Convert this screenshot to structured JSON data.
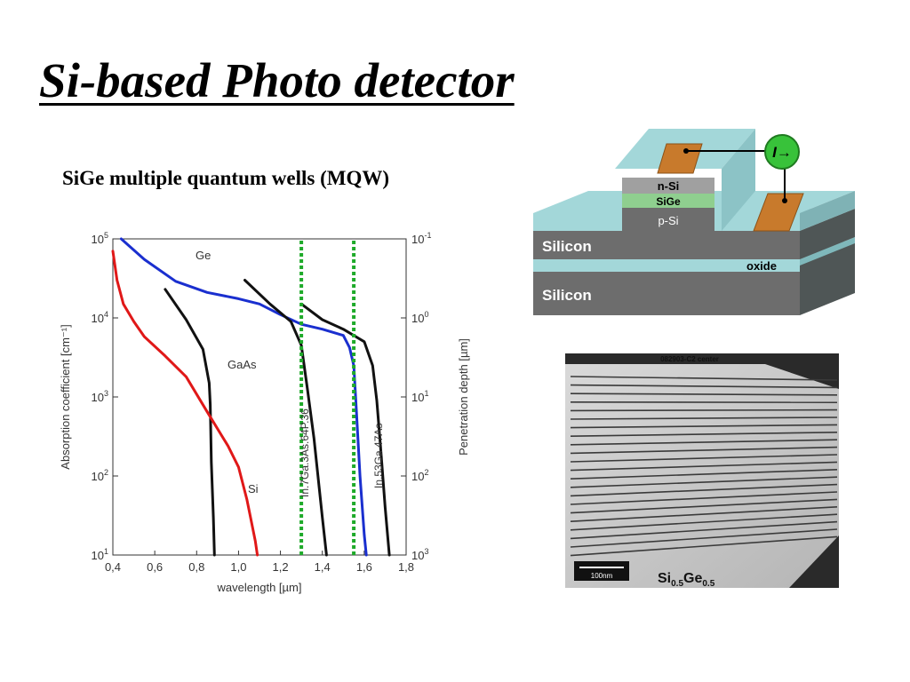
{
  "slide": {
    "title": "Si-based Photo detector",
    "subtitle": "SiGe multiple quantum wells (MQW)"
  },
  "chart_data": {
    "type": "line",
    "xlabel": "wavelength [µm]",
    "ylabel": "Absorption coefficient [cm⁻¹]",
    "y2label": "Penetration depth [µm]",
    "xlim": [
      0.4,
      1.8
    ],
    "ylim": [
      10,
      100000
    ],
    "y_scale": "log",
    "x_ticks": [
      "0,4",
      "0,6",
      "0,8",
      "1,0",
      "1,2",
      "1,4",
      "1,6",
      "1,8"
    ],
    "y_ticks": [
      {
        "base": "10",
        "exp": "5"
      },
      {
        "base": "10",
        "exp": "4"
      },
      {
        "base": "10",
        "exp": "3"
      },
      {
        "base": "10",
        "exp": "2"
      },
      {
        "base": "10",
        "exp": "1"
      }
    ],
    "y2_ticks": [
      {
        "base": "10",
        "exp": "-1"
      },
      {
        "base": "10",
        "exp": "0"
      },
      {
        "base": "10",
        "exp": "1"
      },
      {
        "base": "10",
        "exp": "2"
      },
      {
        "base": "10",
        "exp": "3"
      }
    ],
    "series": [
      {
        "name": "Ge",
        "color": "#1a2fcf",
        "style": "solid",
        "points": [
          [
            0.44,
            100000
          ],
          [
            0.55,
            55000
          ],
          [
            0.7,
            29000
          ],
          [
            0.85,
            21000
          ],
          [
            1.0,
            17500
          ],
          [
            1.1,
            15000
          ],
          [
            1.2,
            11000
          ],
          [
            1.3,
            8300
          ],
          [
            1.4,
            7200
          ],
          [
            1.5,
            6000
          ],
          [
            1.53,
            4200
          ],
          [
            1.55,
            2500
          ],
          [
            1.56,
            900
          ],
          [
            1.58,
            100
          ],
          [
            1.6,
            18
          ],
          [
            1.61,
            10
          ]
        ]
      },
      {
        "name": "GaAs",
        "color": "#111111",
        "style": "solid",
        "points": [
          [
            0.65,
            23000
          ],
          [
            0.75,
            9500
          ],
          [
            0.83,
            4000
          ],
          [
            0.86,
            1500
          ],
          [
            0.865,
            800
          ],
          [
            0.87,
            150
          ],
          [
            0.88,
            30
          ],
          [
            0.885,
            10
          ]
        ]
      },
      {
        "name": "Si",
        "color": "#e01818",
        "style": "solid",
        "points": [
          [
            0.4,
            70000
          ],
          [
            0.42,
            30000
          ],
          [
            0.45,
            15000
          ],
          [
            0.5,
            9000
          ],
          [
            0.55,
            5800
          ],
          [
            0.65,
            3300
          ],
          [
            0.75,
            1800
          ],
          [
            0.85,
            650
          ],
          [
            0.95,
            240
          ],
          [
            1.0,
            130
          ],
          [
            1.04,
            50
          ],
          [
            1.08,
            15
          ],
          [
            1.09,
            10
          ]
        ]
      },
      {
        "name": "In0.7Ga0.3As0.64P0.36",
        "color": "#111111",
        "style": "solid",
        "points": [
          [
            1.03,
            30000
          ],
          [
            1.15,
            15000
          ],
          [
            1.25,
            9000
          ],
          [
            1.3,
            4500
          ],
          [
            1.33,
            1200
          ],
          [
            1.36,
            300
          ],
          [
            1.4,
            30
          ],
          [
            1.42,
            10
          ]
        ]
      },
      {
        "name": "In0.53Ga0.47As",
        "color": "#111111",
        "style": "solid",
        "points": [
          [
            1.3,
            15000
          ],
          [
            1.4,
            9500
          ],
          [
            1.5,
            7200
          ],
          [
            1.6,
            5000
          ],
          [
            1.64,
            2500
          ],
          [
            1.66,
            900
          ],
          [
            1.68,
            200
          ],
          [
            1.7,
            40
          ],
          [
            1.72,
            10
          ]
        ]
      },
      {
        "name": "In0.7Ga0.3As0.64P0.36 cutoff",
        "color": "#1faa2a",
        "style": "dotted",
        "points": [
          [
            1.3,
            10
          ],
          [
            1.3,
            100000
          ]
        ]
      },
      {
        "name": "In0.53Ga0.47As cutoff",
        "color": "#1faa2a",
        "style": "dotted",
        "points": [
          [
            1.55,
            10
          ],
          [
            1.55,
            100000
          ]
        ]
      }
    ],
    "labels": {
      "ge": "Ge",
      "gaas": "GaAs",
      "si": "Si",
      "ingaasp": "In.7Ga.3As.64P.36",
      "ingaas": "In.53Ga.47As"
    }
  },
  "device": {
    "layers": {
      "n_si": "n-Si",
      "sige": "SiGe",
      "p_si": "p-Si",
      "silicon_top": "Silicon",
      "oxide": "oxide",
      "silicon_bottom": "Silicon"
    },
    "meter": "I→",
    "colors": {
      "teal": "#a3d7d9",
      "gray": "#6d6d6d",
      "contact": "#c87a2c",
      "sige": "#8fcf8f",
      "meter": "#38c23a"
    }
  },
  "tem": {
    "header": "082903-C2 center",
    "scale_bar": "100nm",
    "material": "Si",
    "material_sub1": "0.5",
    "material_mid": "Ge",
    "material_sub2": "0.5",
    "layer_count": 22
  }
}
